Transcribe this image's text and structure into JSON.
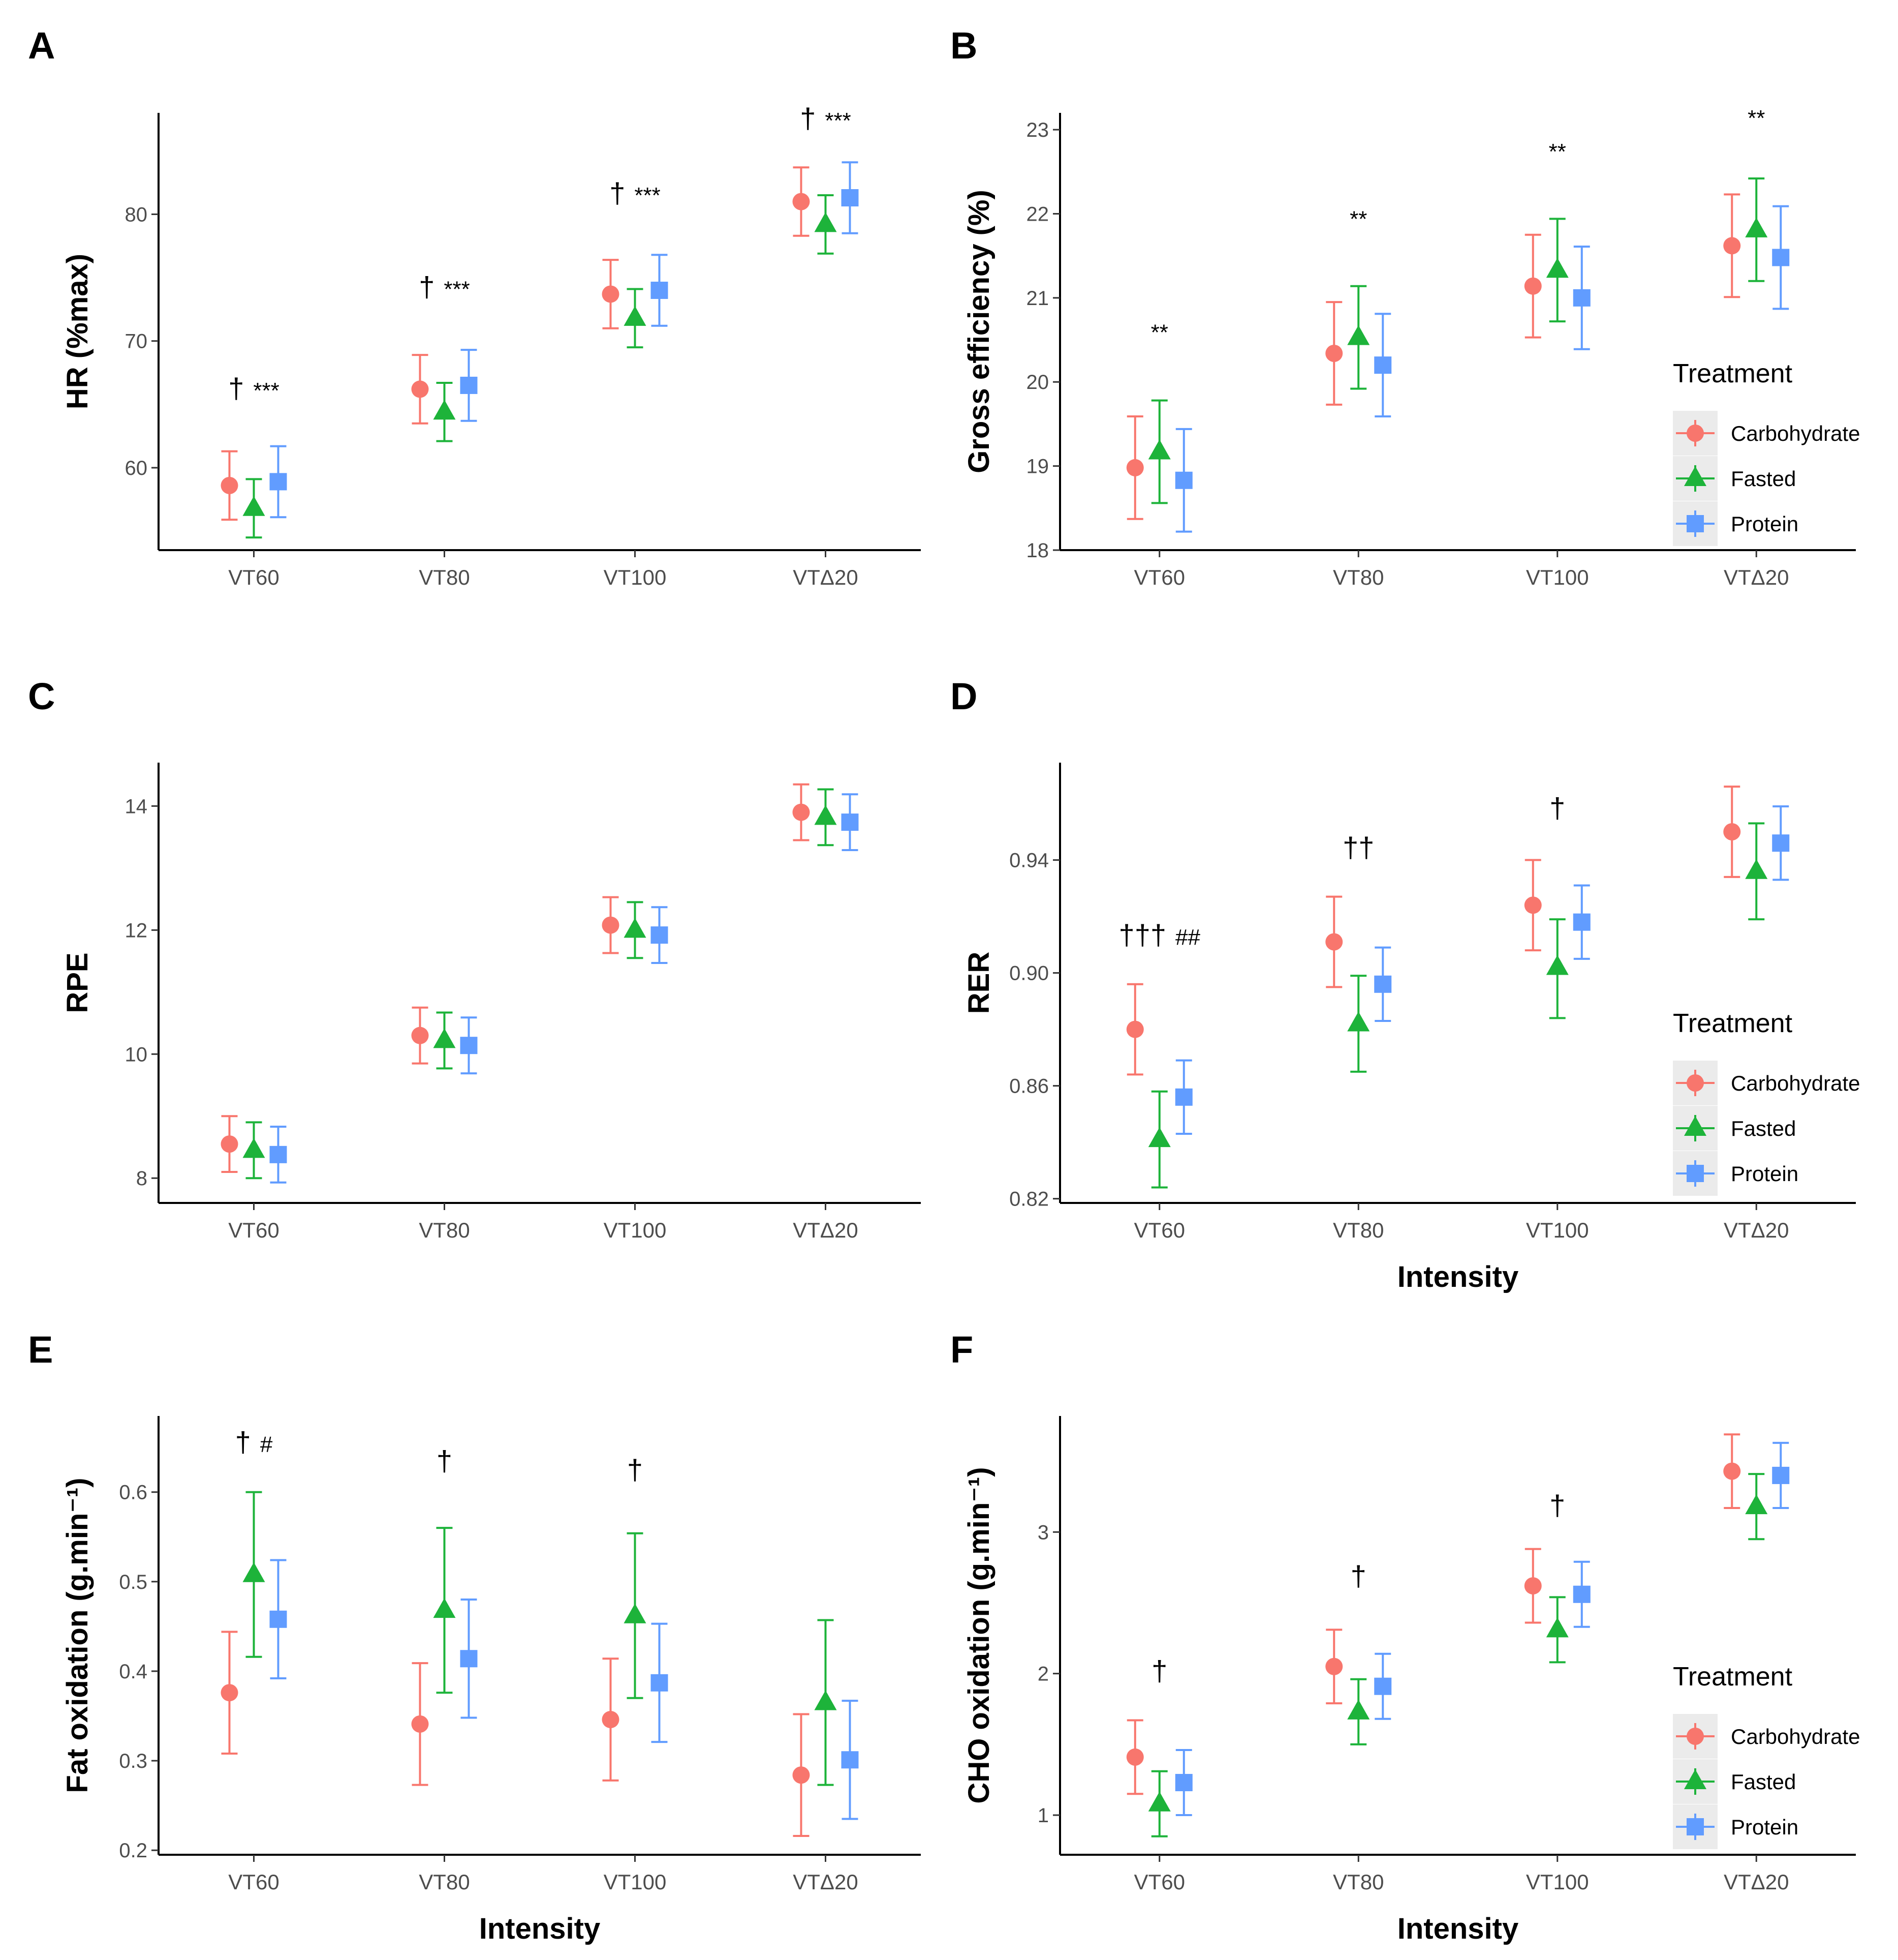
{
  "figure_title": "",
  "treatments": [
    {
      "name": "Carbohydrate",
      "color": "#F8766D",
      "shape": "circle"
    },
    {
      "name": "Fasted",
      "color": "#1DB33A",
      "shape": "triangle"
    },
    {
      "name": "Protein",
      "color": "#619CFF",
      "shape": "square"
    }
  ],
  "chart_data": [
    {
      "panel": "A",
      "type": "scatter",
      "title": "",
      "ylabel": "HR (%max)",
      "xlabel": "",
      "categories": [
        "VT60",
        "VT80",
        "VT100",
        "VTΔ20"
      ],
      "ylim": [
        53.5,
        88
      ],
      "yticks": [
        60,
        70,
        80
      ],
      "legend": null,
      "series": [
        {
          "name": "Carbohydrate",
          "values": [
            58.6,
            66.2,
            73.7,
            81.0
          ],
          "lower": [
            55.9,
            63.5,
            71.0,
            78.3
          ],
          "upper": [
            61.3,
            68.9,
            76.4,
            83.7
          ]
        },
        {
          "name": "Fasted",
          "values": [
            56.8,
            64.4,
            71.8,
            79.2
          ],
          "lower": [
            54.5,
            62.1,
            69.5,
            76.9
          ],
          "upper": [
            59.1,
            66.7,
            74.1,
            81.5
          ]
        },
        {
          "name": "Protein",
          "values": [
            58.9,
            66.5,
            74.0,
            81.3
          ],
          "lower": [
            56.1,
            63.7,
            71.2,
            78.5
          ],
          "upper": [
            61.7,
            69.3,
            76.8,
            84.1
          ]
        }
      ],
      "annotations": [
        {
          "category": "VT60",
          "dagger": "†",
          "stars": "***",
          "y": 65.5
        },
        {
          "category": "VT80",
          "dagger": "†",
          "stars": "***",
          "y": 73.5
        },
        {
          "category": "VT100",
          "dagger": "†",
          "stars": "***",
          "y": 80.9
        },
        {
          "category": "VTΔ20",
          "dagger": "†",
          "stars": "***",
          "y": 86.8
        }
      ]
    },
    {
      "panel": "B",
      "type": "scatter",
      "title": "",
      "ylabel": "Gross efficiency (%)",
      "xlabel": "",
      "categories": [
        "VT60",
        "VT80",
        "VT100",
        "VTΔ20"
      ],
      "ylim": [
        18,
        23.2
      ],
      "yticks": [
        18,
        19,
        20,
        21,
        22,
        23
      ],
      "legend": {
        "title": "Treatment",
        "placement": "right"
      },
      "series": [
        {
          "name": "Carbohydrate",
          "values": [
            18.98,
            20.34,
            21.14,
            21.62
          ],
          "lower": [
            18.37,
            19.73,
            20.53,
            21.01
          ],
          "upper": [
            19.59,
            20.95,
            21.75,
            22.23
          ]
        },
        {
          "name": "Fasted",
          "values": [
            19.17,
            20.53,
            21.33,
            21.81
          ],
          "lower": [
            18.56,
            19.92,
            20.72,
            21.2
          ],
          "upper": [
            19.78,
            21.14,
            21.94,
            22.42
          ]
        },
        {
          "name": "Protein",
          "values": [
            18.83,
            20.2,
            21.0,
            21.48
          ],
          "lower": [
            18.22,
            19.59,
            20.39,
            20.87
          ],
          "upper": [
            19.44,
            20.81,
            21.61,
            22.09
          ]
        }
      ],
      "annotations": [
        {
          "category": "VT60",
          "dagger": "",
          "stars": "**",
          "y": 20.5
        },
        {
          "category": "VT80",
          "dagger": "",
          "stars": "**",
          "y": 21.85
        },
        {
          "category": "VT100",
          "dagger": "",
          "stars": "**",
          "y": 22.65
        },
        {
          "category": "VTΔ20",
          "dagger": "",
          "stars": "**",
          "y": 23.05
        }
      ]
    },
    {
      "panel": "C",
      "type": "scatter",
      "title": "",
      "ylabel": "RPE",
      "xlabel": "",
      "categories": [
        "VT60",
        "VT80",
        "VT100",
        "VTΔ20"
      ],
      "ylim": [
        7.6,
        14.7
      ],
      "yticks": [
        8,
        10,
        12,
        14
      ],
      "legend": null,
      "series": [
        {
          "name": "Carbohydrate",
          "values": [
            8.55,
            10.3,
            12.08,
            13.9
          ],
          "lower": [
            8.1,
            9.85,
            11.63,
            13.45
          ],
          "upper": [
            9.0,
            10.75,
            12.53,
            14.35
          ]
        },
        {
          "name": "Fasted",
          "values": [
            8.45,
            10.22,
            12.0,
            13.82
          ],
          "lower": [
            8.0,
            9.77,
            11.55,
            13.37
          ],
          "upper": [
            8.9,
            10.67,
            12.45,
            14.27
          ]
        },
        {
          "name": "Protein",
          "values": [
            8.38,
            10.14,
            11.92,
            13.74
          ],
          "lower": [
            7.93,
            9.69,
            11.47,
            13.29
          ],
          "upper": [
            8.83,
            10.59,
            12.37,
            14.19
          ]
        }
      ],
      "annotations": []
    },
    {
      "panel": "D",
      "type": "scatter",
      "title": "",
      "ylabel": "RER",
      "xlabel": "Intensity",
      "categories": [
        "VT60",
        "VT80",
        "VT100",
        "VTΔ20"
      ],
      "ylim": [
        0.8185,
        0.9745
      ],
      "yticks": [
        0.82,
        0.86,
        0.9,
        0.94
      ],
      "legend": {
        "title": "Treatment",
        "placement": "right"
      },
      "series": [
        {
          "name": "Carbohydrate",
          "values": [
            0.88,
            0.911,
            0.924,
            0.95
          ],
          "lower": [
            0.864,
            0.895,
            0.908,
            0.934
          ],
          "upper": [
            0.896,
            0.927,
            0.94,
            0.966
          ]
        },
        {
          "name": "Fasted",
          "values": [
            0.841,
            0.882,
            0.902,
            0.936
          ],
          "lower": [
            0.824,
            0.865,
            0.884,
            0.919
          ],
          "upper": [
            0.858,
            0.899,
            0.919,
            0.953
          ]
        },
        {
          "name": "Protein",
          "values": [
            0.856,
            0.896,
            0.918,
            0.946
          ],
          "lower": [
            0.843,
            0.883,
            0.905,
            0.933
          ],
          "upper": [
            0.869,
            0.909,
            0.931,
            0.959
          ]
        }
      ],
      "annotations": [
        {
          "category": "VT60",
          "dagger": "†††",
          "stars": "##",
          "y": 0.91
        },
        {
          "category": "VT80",
          "dagger": "††",
          "stars": "",
          "y": 0.941
        },
        {
          "category": "VT100",
          "dagger": "†",
          "stars": "",
          "y": 0.955
        }
      ]
    },
    {
      "panel": "E",
      "type": "scatter",
      "title": "",
      "ylabel": "Fat oxidation (g.min⁻¹)",
      "xlabel": "Intensity",
      "categories": [
        "VT60",
        "VT80",
        "VT100",
        "VTΔ20"
      ],
      "ylim": [
        0.195,
        0.685
      ],
      "yticks": [
        0.2,
        0.3,
        0.4,
        0.5,
        0.6
      ],
      "legend": null,
      "series": [
        {
          "name": "Carbohydrate",
          "values": [
            0.376,
            0.341,
            0.346,
            0.284
          ],
          "lower": [
            0.308,
            0.273,
            0.278,
            0.216
          ],
          "upper": [
            0.444,
            0.409,
            0.414,
            0.352
          ]
        },
        {
          "name": "Fasted",
          "values": [
            0.508,
            0.468,
            0.462,
            0.365
          ],
          "lower": [
            0.416,
            0.376,
            0.37,
            0.273
          ],
          "upper": [
            0.6,
            0.56,
            0.554,
            0.457
          ]
        },
        {
          "name": "Protein",
          "values": [
            0.458,
            0.414,
            0.387,
            0.301
          ],
          "lower": [
            0.392,
            0.348,
            0.321,
            0.235
          ],
          "upper": [
            0.524,
            0.48,
            0.453,
            0.367
          ]
        }
      ],
      "annotations": [
        {
          "category": "VT60",
          "dagger": "†",
          "stars": "#",
          "y": 0.645
        },
        {
          "category": "VT80",
          "dagger": "†",
          "stars": "",
          "y": 0.624
        },
        {
          "category": "VT100",
          "dagger": "†",
          "stars": "",
          "y": 0.614
        }
      ]
    },
    {
      "panel": "F",
      "type": "scatter",
      "title": "",
      "ylabel": "CHO oxidation (g.min⁻¹)",
      "xlabel": "Intensity",
      "categories": [
        "VT60",
        "VT80",
        "VT100",
        "VTΔ20"
      ],
      "ylim": [
        0.72,
        3.82
      ],
      "yticks": [
        1,
        2,
        3
      ],
      "legend": {
        "title": "Treatment",
        "placement": "right"
      },
      "series": [
        {
          "name": "Carbohydrate",
          "values": [
            1.41,
            2.05,
            2.62,
            3.43
          ],
          "lower": [
            1.15,
            1.79,
            2.36,
            3.17
          ],
          "upper": [
            1.67,
            2.31,
            2.88,
            3.69
          ]
        },
        {
          "name": "Fasted",
          "values": [
            1.08,
            1.73,
            2.31,
            3.18
          ],
          "lower": [
            0.85,
            1.5,
            2.08,
            2.95
          ],
          "upper": [
            1.31,
            1.96,
            2.54,
            3.41
          ]
        },
        {
          "name": "Protein",
          "values": [
            1.23,
            1.91,
            2.56,
            3.4
          ],
          "lower": [
            1.0,
            1.68,
            2.33,
            3.17
          ],
          "upper": [
            1.46,
            2.14,
            2.79,
            3.63
          ]
        }
      ],
      "annotations": [
        {
          "category": "VT60",
          "dagger": "†",
          "stars": "",
          "y": 1.95
        },
        {
          "category": "VT80",
          "dagger": "†",
          "stars": "",
          "y": 2.62
        },
        {
          "category": "VT100",
          "dagger": "†",
          "stars": "",
          "y": 3.12
        }
      ]
    }
  ]
}
